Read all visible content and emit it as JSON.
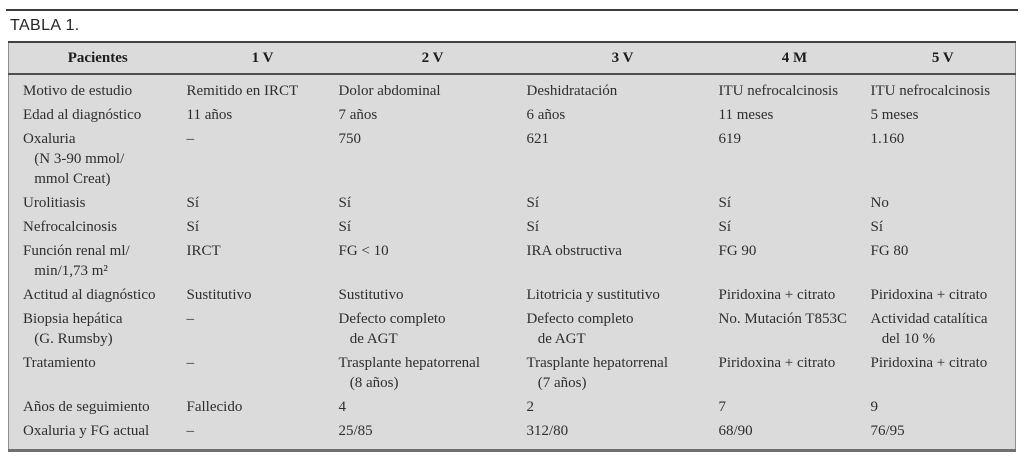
{
  "page": {
    "caption": "TABLA 1."
  },
  "colors": {
    "table_background": "#dbdbdb",
    "text": "#2e2e2e",
    "rule_dark": "#424242",
    "rule_light": "#909090"
  },
  "table": {
    "columns": [
      "Pacientes",
      "1 V",
      "2 V",
      "3 V",
      "4 M",
      "5 V"
    ],
    "rows": [
      {
        "label": "Motivo de estudio",
        "values": [
          "Remitido en IRCT",
          "Dolor abdominal",
          "Deshidratación",
          "ITU nefrocalcinosis",
          "ITU nefrocalcinosis"
        ]
      },
      {
        "label": "Edad al diagnóstico",
        "values": [
          "11 años",
          "7 años",
          "6 años",
          "11 meses",
          "5 meses"
        ]
      },
      {
        "label": "Oxaluria\n   (N 3-90 mmol/\n   mmol Creat)",
        "values": [
          "–",
          "750",
          "621",
          "619",
          "1.160"
        ]
      },
      {
        "label": "Urolitiasis",
        "values": [
          "Sí",
          "Sí",
          "Sí",
          "Sí",
          "No"
        ]
      },
      {
        "label": "Nefrocalcinosis",
        "values": [
          "Sí",
          "Sí",
          "Sí",
          "Sí",
          "Sí"
        ]
      },
      {
        "label": "Función renal ml/\n   min/1,73 m²",
        "values": [
          "IRCT",
          "FG < 10",
          "IRA obstructiva",
          "FG 90",
          "FG 80"
        ]
      },
      {
        "label": "Actitud al diagnóstico",
        "values": [
          "Sustitutivo",
          "Sustitutivo",
          "Litotricia y sustitutivo",
          "Piridoxina + citrato",
          "Piridoxina + citrato"
        ]
      },
      {
        "label": "Biopsia hepática\n   (G. Rumsby)",
        "values": [
          "–",
          "Defecto completo\n   de AGT",
          "Defecto completo\n   de AGT",
          "No. Mutación T853C",
          "Actividad catalítica\n   del 10 %"
        ]
      },
      {
        "label": "Tratamiento",
        "values": [
          "–",
          "Trasplante hepatorrenal\n   (8 años)",
          "Trasplante hepatorrenal\n   (7 años)",
          "Piridoxina + citrato",
          "Piridoxina + citrato"
        ]
      },
      {
        "label": "Años de seguimiento",
        "values": [
          "Fallecido",
          "4",
          "2",
          "7",
          "9"
        ]
      },
      {
        "label": "Oxaluria y FG actual",
        "values": [
          "–",
          "25/85",
          "312/80",
          "68/90",
          "76/95"
        ]
      }
    ]
  }
}
